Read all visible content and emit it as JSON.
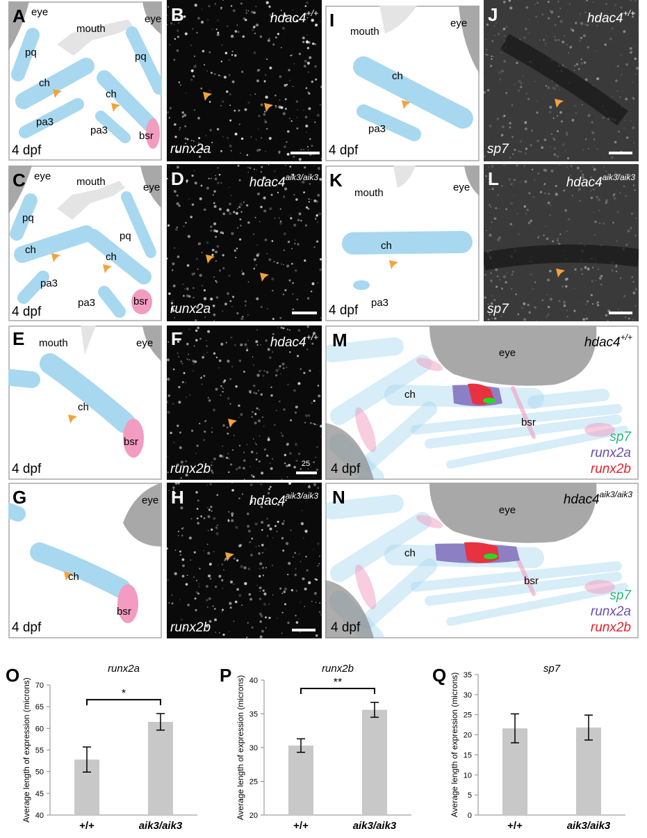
{
  "panel_a": {
    "letter": "A",
    "labels": [
      "eye",
      "mouth",
      "eye",
      "pq",
      "pq",
      "ch",
      "ch",
      "pa3",
      "pa3",
      "bsr"
    ],
    "stage": "4 dpf"
  },
  "panel_b": {
    "letter": "B",
    "genotype": {
      "gene": "hdac4",
      "allele": "+/+"
    },
    "probe": "runx2a"
  },
  "panel_c": {
    "letter": "C",
    "labels": [
      "eye",
      "mouth",
      "eye",
      "pq",
      "pq",
      "ch",
      "ch",
      "pa3",
      "pa3",
      "bsr"
    ],
    "stage": "4 dpf"
  },
  "panel_d": {
    "letter": "D",
    "genotype": {
      "gene": "hdac4",
      "allele": "aik3/aik3"
    },
    "probe": "runx2a"
  },
  "panel_e": {
    "letter": "E",
    "labels": [
      "mouth",
      "eye",
      "ch",
      "bsr"
    ],
    "stage": "4 dpf"
  },
  "panel_f": {
    "letter": "F",
    "genotype": {
      "gene": "hdac4",
      "allele": "+/+"
    },
    "probe": "runx2b",
    "scale": "25"
  },
  "panel_g": {
    "letter": "G",
    "labels": [
      "eye",
      "ch",
      "bsr"
    ],
    "stage": "4 dpf"
  },
  "panel_h": {
    "letter": "H",
    "genotype": {
      "gene": "hdac4",
      "allele": "aik3/aik3"
    },
    "probe": "runx2b"
  },
  "panel_i": {
    "letter": "I",
    "labels": [
      "mouth",
      "eye",
      "ch",
      "pa3"
    ],
    "stage": "4 dpf"
  },
  "panel_j": {
    "letter": "J",
    "genotype": {
      "gene": "hdac4",
      "allele": "+/+"
    },
    "probe": "sp7"
  },
  "panel_k": {
    "letter": "K",
    "labels": [
      "mouth",
      "eye",
      "ch",
      "pa3"
    ],
    "stage": "4 dpf"
  },
  "panel_l": {
    "letter": "L",
    "genotype": {
      "gene": "hdac4",
      "allele": "aik3/aik3"
    },
    "probe": "sp7"
  },
  "panel_m": {
    "letter": "M",
    "genotype": {
      "gene": "hdac4",
      "allele": "+/+"
    },
    "labels": [
      "eye",
      "ch",
      "bsr"
    ],
    "stage": "4 dpf",
    "legend": [
      "sp7",
      "runx2a",
      "runx2b"
    ]
  },
  "panel_n": {
    "letter": "N",
    "genotype": {
      "gene": "hdac4",
      "allele": "aik3/aik3"
    },
    "labels": [
      "eye",
      "ch",
      "bsr"
    ],
    "stage": "4 dpf",
    "legend": [
      "sp7",
      "runx2a",
      "runx2b"
    ]
  },
  "chart_data": [
    {
      "type": "bar",
      "panel": "O",
      "title": "runx2a",
      "y_label": "Average length of expression (microns)",
      "categories": [
        "+/+",
        "aik3/aik3"
      ],
      "values": [
        52.8,
        61.5
      ],
      "errors": [
        2.9,
        1.9
      ],
      "color": "#c8c8c8",
      "ylim": [
        40,
        70
      ],
      "yticks": [
        40,
        45,
        50,
        55,
        60,
        65,
        70
      ],
      "significance": "*"
    },
    {
      "type": "bar",
      "panel": "P",
      "title": "runx2b",
      "y_label": "Average length of expression (microns)",
      "categories": [
        "+/+",
        "aik3/aik3"
      ],
      "values": [
        30.3,
        35.6
      ],
      "errors": [
        1.0,
        1.1
      ],
      "color": "#c8c8c8",
      "ylim": [
        20,
        40
      ],
      "yticks": [
        20,
        25,
        30,
        35,
        40
      ],
      "significance": "**"
    },
    {
      "type": "bar",
      "panel": "Q",
      "title": "sp7",
      "y_label": "Average length of expression (microns)",
      "categories": [
        "+/+",
        "aik3/aik3"
      ],
      "values": [
        21.6,
        21.8
      ],
      "errors": [
        3.6,
        3.1
      ],
      "color": "#c8c8c8",
      "ylim": [
        0,
        35
      ],
      "yticks": [
        0,
        5,
        10,
        15,
        20,
        25,
        30,
        35
      ]
    }
  ]
}
